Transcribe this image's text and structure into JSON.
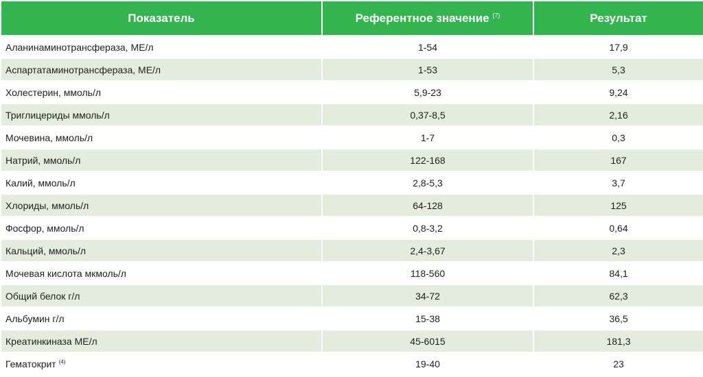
{
  "header": {
    "col1": "Показатель",
    "col2": "Референтное значение",
    "col2_note": "(7)",
    "col3": "Результат"
  },
  "rows": [
    {
      "name": "Аланинаминотрансфераза, МЕ/л",
      "note": "",
      "reference": "1-54",
      "result": "17,9"
    },
    {
      "name": "Аспартатаминотрансфераза, МЕ/л",
      "note": "",
      "reference": "1-53",
      "result": "5,3"
    },
    {
      "name": "Холестерин, ммоль/л",
      "note": "",
      "reference": "5,9-23",
      "result": "9,24"
    },
    {
      "name": "Триглицериды ммоль/л",
      "note": "",
      "reference": "0,37-8,5",
      "result": "2,16"
    },
    {
      "name": "Мочевина, ммоль/л",
      "note": "",
      "reference": "1-7",
      "result": "0,3"
    },
    {
      "name": "Натрий, ммоль/л",
      "note": "",
      "reference": "122-168",
      "result": "167"
    },
    {
      "name": "Калий, ммоль/л",
      "note": "",
      "reference": "2,8-5,3",
      "result": "3,7"
    },
    {
      "name": "Хлориды, ммоль/л",
      "note": "",
      "reference": "64-128",
      "result": "125"
    },
    {
      "name": "Фосфор, ммоль/л",
      "note": "",
      "reference": "0,8-3,2",
      "result": "0,64"
    },
    {
      "name": "Кальций, ммоль/л",
      "note": "",
      "reference": "2,4-3,67",
      "result": "2,3"
    },
    {
      "name": "Мочевая кислота мкмоль/л",
      "note": "",
      "reference": "118-560",
      "result": "84,1"
    },
    {
      "name": "Общий белок г/л",
      "note": "",
      "reference": "34-72",
      "result": "62,3"
    },
    {
      "name": "Альбумин  г/л",
      "note": "",
      "reference": "15-38",
      "result": "36,5"
    },
    {
      "name": "Креатинкиназа  МЕ/л",
      "note": "",
      "reference": "45-6015",
      "result": "181,3"
    },
    {
      "name": "Гематокрит",
      "note": "(4)",
      "reference": "19-40",
      "result": "23"
    }
  ],
  "colors": {
    "header_bg": "#34b44f",
    "header_text": "#ffffff",
    "stripe": "#e4eddd"
  }
}
